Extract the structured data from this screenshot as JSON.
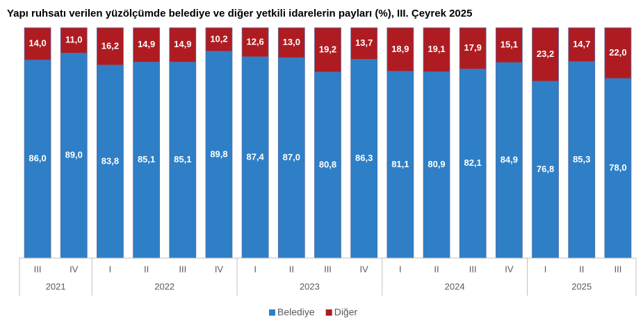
{
  "chart_data": {
    "type": "stacked_bar",
    "title": "Yapı ruhsatı verilen yüzölçümde belediye ve diğer yetkili idarelerin payları (%), III. Çeyrek 2025",
    "categories": [
      "III",
      "IV",
      "I",
      "II",
      "III",
      "IV",
      "I",
      "II",
      "III",
      "IV",
      "I",
      "II",
      "III",
      "IV",
      "I",
      "II",
      "III"
    ],
    "category_years": [
      "2021",
      "2021",
      "2022",
      "2022",
      "2022",
      "2022",
      "2023",
      "2023",
      "2023",
      "2023",
      "2024",
      "2024",
      "2024",
      "2024",
      "2025",
      "2025",
      "2025"
    ],
    "ylim": [
      0,
      100
    ],
    "legend": "bottom",
    "series": [
      {
        "name": "Belediye",
        "color": "#2e7fc6",
        "values": [
          86.0,
          89.0,
          83.8,
          85.1,
          85.1,
          89.8,
          87.4,
          87.0,
          80.8,
          86.3,
          81.1,
          80.9,
          82.1,
          84.9,
          76.8,
          85.3,
          78.0
        ],
        "value_labels": [
          "86,0",
          "89,0",
          "83,8",
          "85,1",
          "85,1",
          "89,8",
          "87,4",
          "87,0",
          "80,8",
          "86,3",
          "81,1",
          "80,9",
          "82,1",
          "84,9",
          "76,8",
          "85,3",
          "78,0"
        ]
      },
      {
        "name": "Diğer",
        "color": "#ae1c22",
        "values": [
          14.0,
          11.0,
          16.2,
          14.9,
          14.9,
          10.2,
          12.6,
          13.0,
          19.2,
          13.7,
          18.9,
          19.1,
          17.9,
          15.1,
          23.2,
          14.7,
          22.0
        ],
        "value_labels": [
          "14,0",
          "11,0",
          "16,2",
          "14,9",
          "14,9",
          "10,2",
          "12,6",
          "13,0",
          "19,2",
          "13,7",
          "18,9",
          "19,1",
          "17,9",
          "15,1",
          "23,2",
          "14,7",
          "22,0"
        ]
      }
    ]
  }
}
